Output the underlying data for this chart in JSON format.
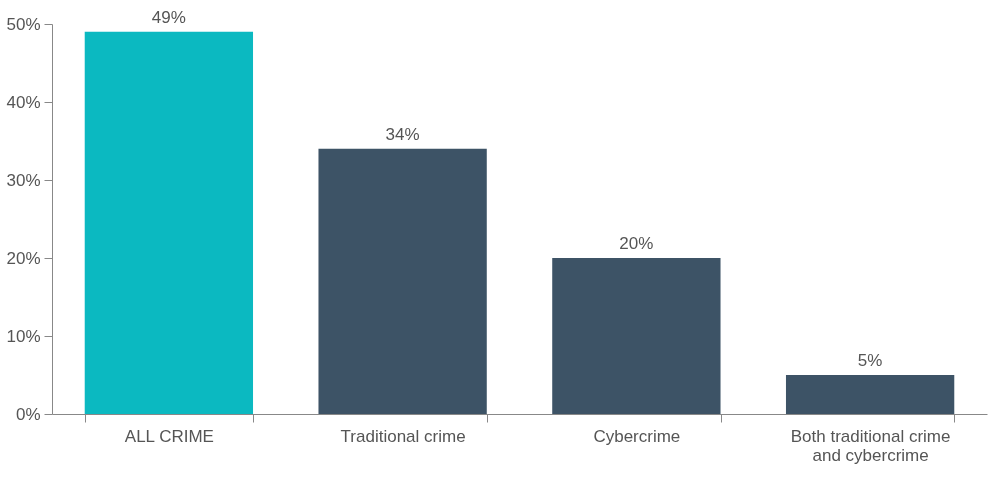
{
  "chart_data": {
    "type": "bar",
    "categories": [
      "ALL CRIME",
      "Traditional crime",
      "Cybercrime",
      "Both traditional crime and cybercrime"
    ],
    "values": [
      49,
      34,
      20,
      5
    ],
    "colors": [
      "#0bb9c1",
      "#3d5366",
      "#3d5366",
      "#3d5366"
    ],
    "value_labels": [
      "49%",
      "34%",
      "20%",
      "5%"
    ],
    "ylim": [
      0,
      50
    ],
    "yticks": [
      {
        "value": 0,
        "label": "0%"
      },
      {
        "value": 10,
        "label": "10%"
      },
      {
        "value": 20,
        "label": "20%"
      },
      {
        "value": 30,
        "label": "30%"
      },
      {
        "value": 40,
        "label": "40%"
      },
      {
        "value": 50,
        "label": "50%"
      }
    ],
    "grid": false
  }
}
